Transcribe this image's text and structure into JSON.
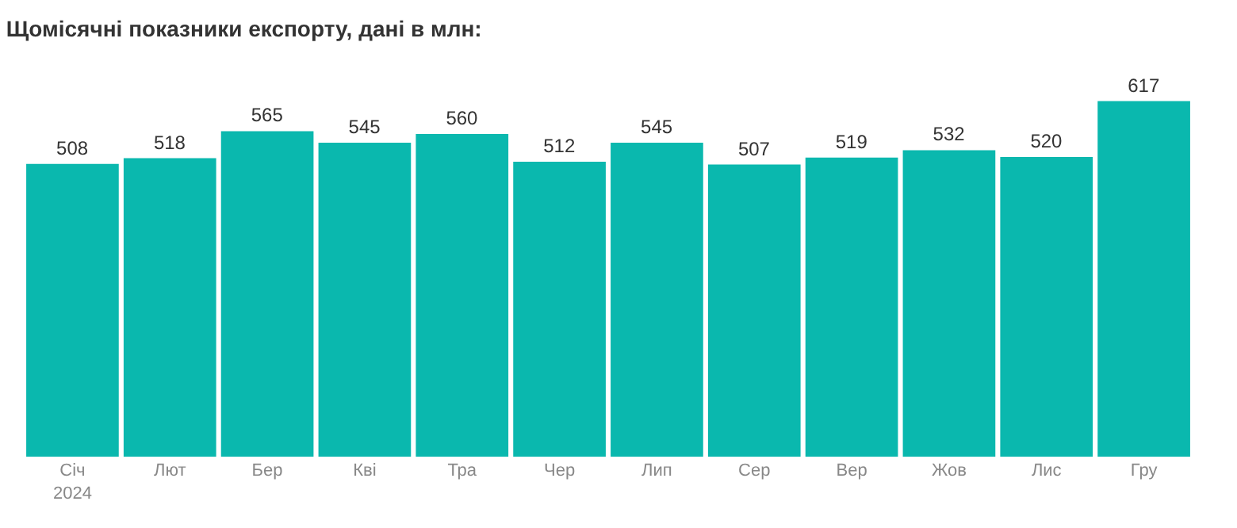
{
  "chart_data": {
    "type": "bar",
    "title": "Щомісячні показники експорту, дані в млн:",
    "categories": [
      "Січ\n2024",
      "Лют",
      "Бер",
      "Кві",
      "Тра",
      "Чер",
      "Лип",
      "Сер",
      "Вер",
      "Жов",
      "Лис",
      "Гру"
    ],
    "values": [
      508,
      518,
      565,
      545,
      560,
      512,
      545,
      507,
      519,
      532,
      520,
      617
    ],
    "color": "#0ab8ae",
    "data_labels": true,
    "tick_labels": "x"
  }
}
